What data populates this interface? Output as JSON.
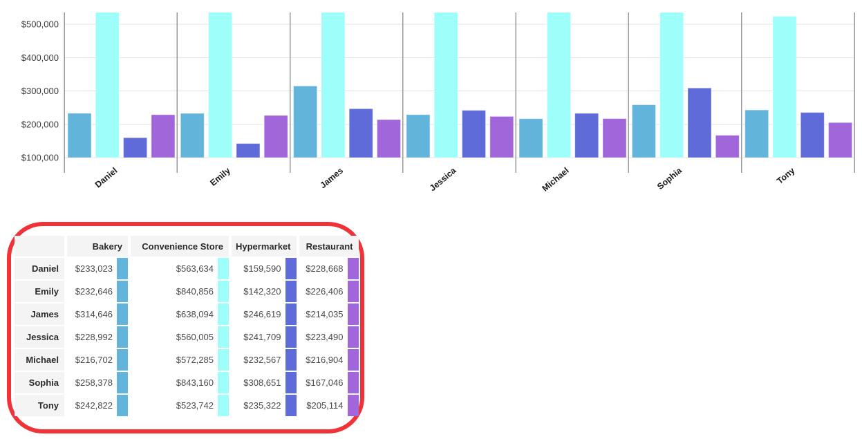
{
  "chart_data": {
    "type": "bar",
    "title": "",
    "xlabel": "",
    "ylabel": "",
    "categories": [
      "Daniel",
      "Emily",
      "James",
      "Jessica",
      "Michael",
      "Sophia",
      "Tony"
    ],
    "series": [
      {
        "name": "Bakery",
        "color": "#62b4da",
        "values": [
          233023,
          232646,
          314646,
          228992,
          216702,
          258378,
          242822
        ]
      },
      {
        "name": "Convenience Store",
        "color": "#9dfefa",
        "values": [
          563634,
          840856,
          638094,
          560005,
          572285,
          843160,
          523742
        ]
      },
      {
        "name": "Hypermarket",
        "color": "#5f6bd8",
        "values": [
          159590,
          142320,
          246619,
          241709,
          232567,
          308651,
          235322
        ]
      },
      {
        "name": "Restaurant",
        "color": "#a166da",
        "values": [
          228668,
          226406,
          214035,
          223490,
          216904,
          167046,
          205114
        ]
      }
    ],
    "y_tick_labels": [
      "$100,000",
      "$200,000",
      "$300,000",
      "$400,000",
      "$500,000"
    ],
    "y_tick_values": [
      100000,
      200000,
      300000,
      400000,
      500000
    ],
    "ylim": [
      100000,
      535000
    ],
    "grid": true,
    "legend_position": "none",
    "bars_clipped_at_top": true,
    "x_label_rotation_deg": -40
  },
  "table": {
    "header": [
      "",
      "Bakery",
      "Convenience Store",
      "Hypermarket",
      "Restaurant"
    ],
    "rows": [
      {
        "name": "Daniel",
        "cells": [
          "$233,023",
          "$563,634",
          "$159,590",
          "$228,668"
        ]
      },
      {
        "name": "Emily",
        "cells": [
          "$232,646",
          "$840,856",
          "$142,320",
          "$226,406"
        ]
      },
      {
        "name": "James",
        "cells": [
          "$314,646",
          "$638,094",
          "$246,619",
          "$214,035"
        ]
      },
      {
        "name": "Jessica",
        "cells": [
          "$228,992",
          "$560,005",
          "$241,709",
          "$223,490"
        ]
      },
      {
        "name": "Michael",
        "cells": [
          "$216,702",
          "$572,285",
          "$232,567",
          "$216,904"
        ]
      },
      {
        "name": "Sophia",
        "cells": [
          "$258,378",
          "$843,160",
          "$308,651",
          "$167,046"
        ]
      },
      {
        "name": "Tony",
        "cells": [
          "$242,822",
          "$523,742",
          "$235,322",
          "$205,114"
        ]
      }
    ],
    "swatch_colors": [
      "#62b4da",
      "#9dfefa",
      "#5f6bd8",
      "#a166da"
    ]
  },
  "annotation": {
    "shape": "rounded-rectangle",
    "color": "#ef3338"
  },
  "colors": {
    "grid_line": "#e3e3e3",
    "separator_line": "#9a9a9a",
    "axis_text": "#3d3d3d",
    "category_text": "#1a1a1a",
    "table_header_bg": "#f4f4f4"
  }
}
